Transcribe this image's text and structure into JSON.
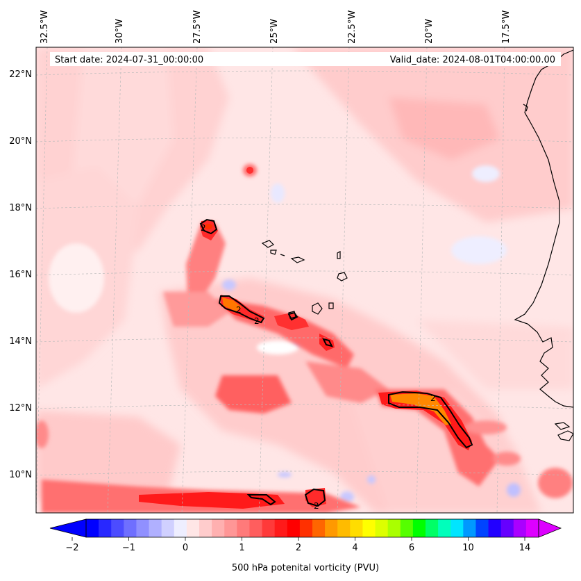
{
  "map": {
    "start_date": "Start date: 2024-07-31_00:00:00",
    "valid_date": "Valid_date: 2024-08-01T04:00:00.00",
    "lon_labels": [
      "32.5°W",
      "30°W",
      "27.5°W",
      "25°W",
      "22.5°W",
      "20°W",
      "17.5°W"
    ],
    "lat_labels": [
      "22°N",
      "20°N",
      "18°N",
      "16°N",
      "14°N",
      "12°N",
      "10°N"
    ],
    "contour_label": "2",
    "colors": {
      "background_pv": "#ffe6e6",
      "contour": "#000000",
      "coastline": "#000000"
    }
  },
  "colorbar": {
    "tick_labels": [
      "−2",
      "−1",
      "0",
      "1",
      "2",
      "4",
      "6",
      "10",
      "14"
    ],
    "label": "500 hPa potenital vorticity (PVU)",
    "colors": [
      "#0000ff",
      "#2828ff",
      "#4c4cff",
      "#6f6fff",
      "#9090ff",
      "#b0b0ff",
      "#d0d0ff",
      "#eeeeff",
      "#ffe6e6",
      "#ffcccc",
      "#ffb0b0",
      "#ff9696",
      "#ff7a7a",
      "#ff5e5e",
      "#ff3a3a",
      "#ff1a1a",
      "#ff0000",
      "#ff3000",
      "#ff6600",
      "#ff9900",
      "#ffbb00",
      "#ffdd00",
      "#ffff00",
      "#ddff00",
      "#aaff00",
      "#55ff00",
      "#00ff00",
      "#00ff66",
      "#00ffbb",
      "#00e5ff",
      "#0099ff",
      "#0044ff",
      "#2200ff",
      "#6600ff",
      "#aa00ff",
      "#dd00ff"
    ]
  }
}
